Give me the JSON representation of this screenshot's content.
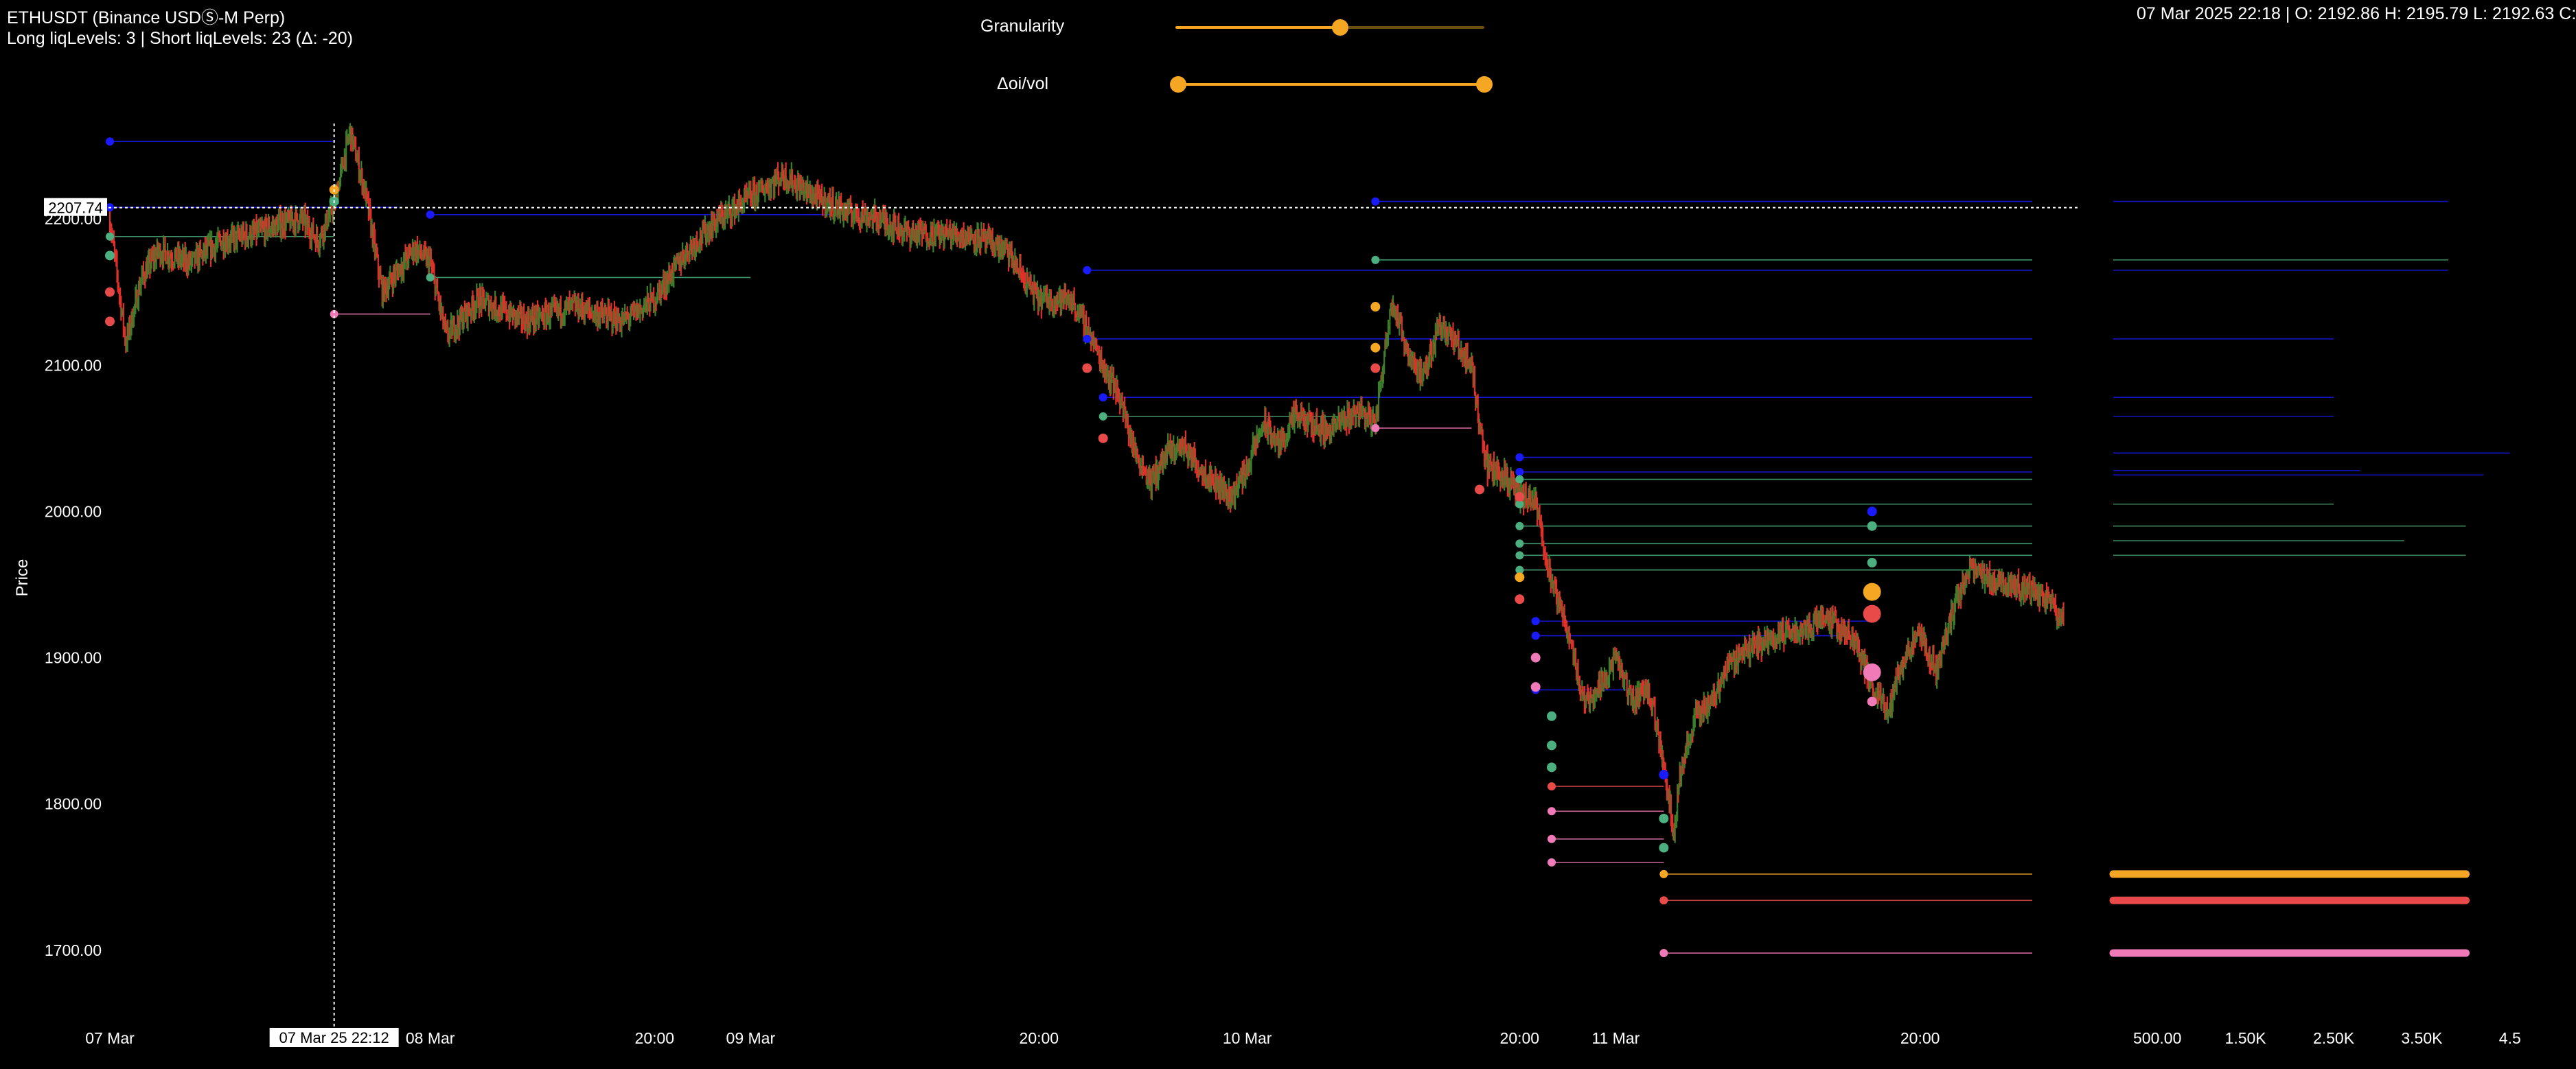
{
  "header": {
    "symbol": "ETHUSDT (Binance USDⓈ-M Perp)",
    "liq_summary": "Long liqLevels: 3 | Short liqLevels: 23 (Δ: -20)",
    "ohlc": "07 Mar 2025 22:18 | O: 2192.86 H: 2195.79 L: 2192.63 C:"
  },
  "controls": {
    "granularity": {
      "label": "Granularity",
      "value_fraction": 0.53
    },
    "delta_oi_vol": {
      "label": "Δoi/vol",
      "range_fraction": [
        0.0,
        1.0
      ]
    }
  },
  "colors": {
    "background": "#000000",
    "candle_up": "#3c7f2a",
    "candle_down": "#e0302a",
    "level_blue": "#1a1aff",
    "level_green": "#4caf80",
    "level_pink": "#f07ab8",
    "level_orange": "#f5a623",
    "level_red": "#e84a4a",
    "slider": "#f5a623"
  },
  "crosshair": {
    "price_label": "2207.74",
    "time_label": "07 Mar 25 22:12"
  },
  "chart_data": {
    "type": "line",
    "ylabel": "Price",
    "ylim": [
      1660,
      2270
    ],
    "y_ticks": [
      "1700.00",
      "1800.00",
      "1900.00",
      "2000.00",
      "2100.00",
      "2200.00"
    ],
    "x_ticks": [
      "07 Mar",
      "08 Mar",
      "20:00",
      "09 Mar",
      "20:00",
      "10 Mar",
      "20:00",
      "11 Mar",
      "20:00"
    ],
    "xlim_hours": [
      0,
      123
    ],
    "price_path": [
      [
        0,
        2200
      ],
      [
        1,
        2115
      ],
      [
        2,
        2160
      ],
      [
        3,
        2178
      ],
      [
        5,
        2170
      ],
      [
        7,
        2185
      ],
      [
        9,
        2190
      ],
      [
        11,
        2198
      ],
      [
        12,
        2200
      ],
      [
        13,
        2185
      ],
      [
        14,
        2210
      ],
      [
        15,
        2260
      ],
      [
        16,
        2215
      ],
      [
        17,
        2150
      ],
      [
        19,
        2180
      ],
      [
        20,
        2170
      ],
      [
        21,
        2120
      ],
      [
        23,
        2145
      ],
      [
        26,
        2130
      ],
      [
        29,
        2140
      ],
      [
        32,
        2130
      ],
      [
        34,
        2145
      ],
      [
        36,
        2178
      ],
      [
        38,
        2200
      ],
      [
        40,
        2215
      ],
      [
        42,
        2230
      ],
      [
        44,
        2215
      ],
      [
        46,
        2205
      ],
      [
        48,
        2200
      ],
      [
        50,
        2190
      ],
      [
        52,
        2190
      ],
      [
        54,
        2188
      ],
      [
        56,
        2178
      ],
      [
        57,
        2160
      ],
      [
        58,
        2145
      ],
      [
        60,
        2145
      ],
      [
        61,
        2125
      ],
      [
        62,
        2100
      ],
      [
        63,
        2080
      ],
      [
        64,
        2040
      ],
      [
        65,
        2020
      ],
      [
        66,
        2040
      ],
      [
        67,
        2045
      ],
      [
        68,
        2030
      ],
      [
        69,
        2020
      ],
      [
        70,
        2010
      ],
      [
        71,
        2030
      ],
      [
        72,
        2060
      ],
      [
        73,
        2045
      ],
      [
        74,
        2065
      ],
      [
        76,
        2055
      ],
      [
        78,
        2070
      ],
      [
        79,
        2060
      ],
      [
        80,
        2145
      ],
      [
        81,
        2110
      ],
      [
        82,
        2090
      ],
      [
        83,
        2130
      ],
      [
        84,
        2115
      ],
      [
        85,
        2100
      ],
      [
        85.5,
        2060
      ],
      [
        86,
        2030
      ],
      [
        87,
        2025
      ],
      [
        88,
        2010
      ],
      [
        89,
        2005
      ],
      [
        90,
        1950
      ],
      [
        91,
        1920
      ],
      [
        92,
        1870
      ],
      [
        93,
        1880
      ],
      [
        94,
        1900
      ],
      [
        95,
        1870
      ],
      [
        96,
        1880
      ],
      [
        97,
        1830
      ],
      [
        97.6,
        1780
      ],
      [
        98,
        1820
      ],
      [
        99,
        1860
      ],
      [
        100,
        1870
      ],
      [
        101,
        1895
      ],
      [
        102,
        1905
      ],
      [
        104,
        1915
      ],
      [
        106,
        1920
      ],
      [
        107,
        1930
      ],
      [
        108,
        1920
      ],
      [
        109,
        1910
      ],
      [
        110,
        1880
      ],
      [
        111,
        1865
      ],
      [
        112,
        1900
      ],
      [
        113,
        1915
      ],
      [
        114,
        1890
      ],
      [
        115,
        1930
      ],
      [
        116,
        1960
      ],
      [
        117,
        1955
      ],
      [
        119,
        1950
      ],
      [
        120,
        1945
      ],
      [
        121,
        1940
      ],
      [
        122,
        1925
      ]
    ],
    "liq_levels": [
      {
        "price": 2253,
        "from": 0,
        "to": 14,
        "color": "blue"
      },
      {
        "price": 2208,
        "from": 0,
        "to": 18,
        "color": "blue"
      },
      {
        "price": 2203,
        "from": 20,
        "to": 45,
        "color": "blue"
      },
      {
        "price": 2188,
        "from": 0,
        "to": 14,
        "color": "green"
      },
      {
        "price": 2160,
        "from": 20,
        "to": 40,
        "color": "green"
      },
      {
        "price": 2135,
        "from": 14,
        "to": 20,
        "color": "pink"
      },
      {
        "price": 2212,
        "from": 79,
        "to": 120,
        "color": "blue"
      },
      {
        "price": 2172,
        "from": 79,
        "to": 120,
        "color": "green"
      },
      {
        "price": 2165,
        "from": 61,
        "to": 120,
        "color": "blue"
      },
      {
        "price": 2118,
        "from": 61,
        "to": 120,
        "color": "blue"
      },
      {
        "price": 2078,
        "from": 62,
        "to": 120,
        "color": "blue"
      },
      {
        "price": 2065,
        "from": 62,
        "to": 79,
        "color": "green"
      },
      {
        "price": 2057,
        "from": 79,
        "to": 85,
        "color": "pink"
      },
      {
        "price": 2037,
        "from": 88,
        "to": 120,
        "color": "blue"
      },
      {
        "price": 2027,
        "from": 88,
        "to": 120,
        "color": "blue"
      },
      {
        "price": 2022,
        "from": 88,
        "to": 120,
        "color": "green"
      },
      {
        "price": 2005,
        "from": 88,
        "to": 120,
        "color": "green"
      },
      {
        "price": 1990,
        "from": 88,
        "to": 120,
        "color": "green"
      },
      {
        "price": 1978,
        "from": 88,
        "to": 120,
        "color": "green"
      },
      {
        "price": 1970,
        "from": 88,
        "to": 120,
        "color": "green"
      },
      {
        "price": 1960,
        "from": 88,
        "to": 118,
        "color": "green"
      },
      {
        "price": 1925,
        "from": 89,
        "to": 110,
        "color": "blue"
      },
      {
        "price": 1915,
        "from": 89,
        "to": 108,
        "color": "blue"
      },
      {
        "price": 1878,
        "from": 89,
        "to": 96,
        "color": "blue"
      },
      {
        "price": 1812,
        "from": 90,
        "to": 97,
        "color": "red"
      },
      {
        "price": 1795,
        "from": 90,
        "to": 97,
        "color": "pink"
      },
      {
        "price": 1776,
        "from": 90,
        "to": 97,
        "color": "pink"
      },
      {
        "price": 1760,
        "from": 90,
        "to": 97,
        "color": "pink"
      },
      {
        "price": 1752,
        "from": 97,
        "to": 120,
        "color": "orange"
      },
      {
        "price": 1734,
        "from": 97,
        "to": 120,
        "color": "red"
      },
      {
        "price": 1698,
        "from": 97,
        "to": 120,
        "color": "pink"
      }
    ],
    "histogram": {
      "x_ticks": [
        "500.00",
        "1.50K",
        "2.50K",
        "3.50K",
        "4.5"
      ],
      "bars": [
        {
          "price": 2212,
          "value": 3800,
          "color": "blue"
        },
        {
          "price": 2172,
          "value": 3800,
          "color": "green"
        },
        {
          "price": 2165,
          "value": 3800,
          "color": "blue"
        },
        {
          "price": 2118,
          "value": 2500,
          "color": "blue"
        },
        {
          "price": 2078,
          "value": 2500,
          "color": "blue"
        },
        {
          "price": 2065,
          "value": 2500,
          "color": "blue"
        },
        {
          "price": 2040,
          "value": 4500,
          "color": "blue"
        },
        {
          "price": 2028,
          "value": 2800,
          "color": "blue"
        },
        {
          "price": 2025,
          "value": 4200,
          "color": "blue"
        },
        {
          "price": 2005,
          "value": 2500,
          "color": "green"
        },
        {
          "price": 1990,
          "value": 4000,
          "color": "green"
        },
        {
          "price": 1980,
          "value": 3300,
          "color": "green"
        },
        {
          "price": 1970,
          "value": 4000,
          "color": "green"
        },
        {
          "price": 1752,
          "value": 4000,
          "color": "orange",
          "thick": true
        },
        {
          "price": 1734,
          "value": 4000,
          "color": "red",
          "thick": true
        },
        {
          "price": 1698,
          "value": 4000,
          "color": "pink",
          "thick": true
        }
      ]
    }
  }
}
